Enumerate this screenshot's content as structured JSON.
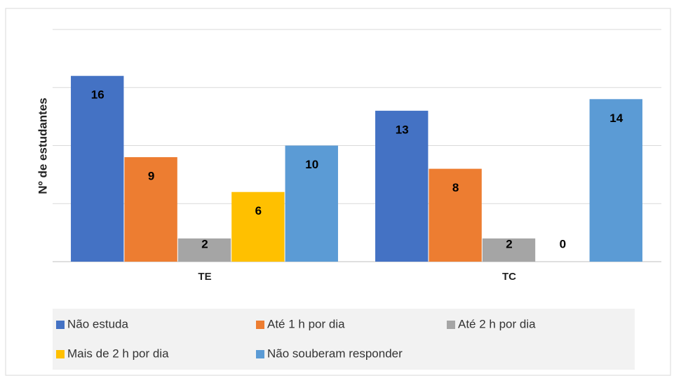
{
  "chart_data": {
    "type": "bar",
    "y_label": "Nº de estudantes",
    "categories": [
      "TE",
      "TC"
    ],
    "series": [
      {
        "name": "Não estuda",
        "color": "#4472c4",
        "values": [
          16,
          13
        ]
      },
      {
        "name": "Até 1 h por dia",
        "color": "#ed7d31",
        "values": [
          9,
          8
        ]
      },
      {
        "name": "Até 2 h por dia",
        "color": "#a5a5a5",
        "values": [
          2,
          2
        ]
      },
      {
        "name": "Mais de 2 h por dia",
        "color": "#ffc000",
        "values": [
          6,
          0
        ]
      },
      {
        "name": "Não souberam responder",
        "color": "#5b9bd5",
        "values": [
          10,
          14
        ]
      }
    ],
    "ylim": [
      0,
      20
    ],
    "yticks": [
      0,
      5,
      10,
      15,
      20
    ],
    "grid": true,
    "legend": "bottom"
  }
}
